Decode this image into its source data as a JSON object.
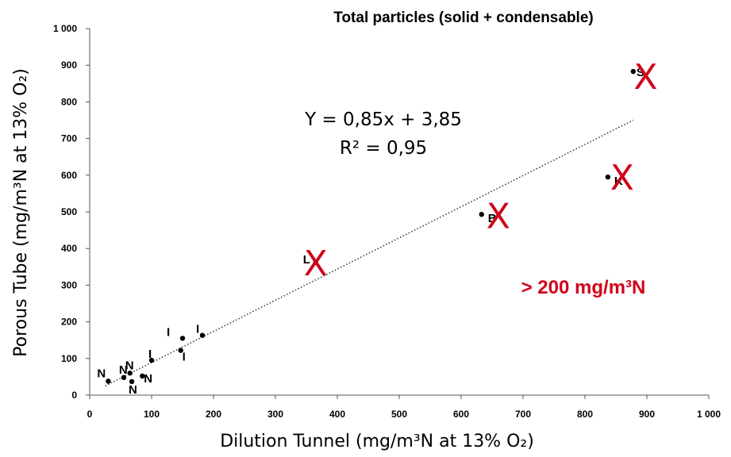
{
  "chart_data": {
    "type": "scatter",
    "title": "Total particles (solid + condensable)",
    "xlabel": "Dilution Tunnel (mg/m³N at 13% O₂)",
    "ylabel": "Porous Tube (mg/m³N at 13% O₂)",
    "xlim": [
      0,
      1000
    ],
    "ylim": [
      0,
      1000
    ],
    "xticks": [
      "0",
      "100",
      "200",
      "300",
      "400",
      "500",
      "600",
      "700",
      "800",
      "900",
      "1 000"
    ],
    "yticks": [
      "0",
      "100",
      "200",
      "300",
      "400",
      "500",
      "600",
      "700",
      "800",
      "900",
      "1 000"
    ],
    "grid": false,
    "points": [
      {
        "x": 30,
        "y": 38,
        "label": "N"
      },
      {
        "x": 55,
        "y": 48,
        "label": "N"
      },
      {
        "x": 65,
        "y": 60,
        "label": "N"
      },
      {
        "x": 68,
        "y": 37,
        "label": "N"
      },
      {
        "x": 85,
        "y": 52,
        "label": "N"
      },
      {
        "x": 100,
        "y": 95,
        "label": "I"
      },
      {
        "x": 147,
        "y": 122,
        "label": "I"
      },
      {
        "x": 150,
        "y": 155,
        "label": "I"
      },
      {
        "x": 182,
        "y": 163,
        "label": "I"
      },
      {
        "x": 365,
        "y": 362,
        "label": "L"
      },
      {
        "x": 633,
        "y": 493,
        "label": "B"
      },
      {
        "x": 837,
        "y": 595,
        "label": "K"
      },
      {
        "x": 878,
        "y": 883,
        "label": "S"
      }
    ],
    "trendline": {
      "slope": 0.85,
      "intercept": 3.85,
      "x_range": [
        25,
        878
      ],
      "style": "dotted"
    },
    "equation": "Y = 0,85x + 3,85",
    "r_squared": "R² = 0,95",
    "crossed_out": [
      {
        "x": 365,
        "y": 362
      },
      {
        "x": 660,
        "y": 490
      },
      {
        "x": 860,
        "y": 595
      },
      {
        "x": 898,
        "y": 870
      }
    ],
    "cross_symbol": "X",
    "annotation": "> 200 mg/m³N"
  },
  "colors": {
    "points": "#000000",
    "cross": "#d0021b",
    "annotation": "#d0021b"
  }
}
